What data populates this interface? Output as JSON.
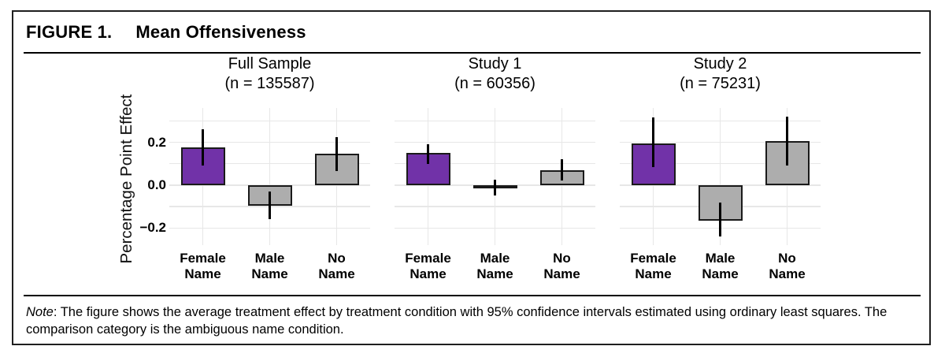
{
  "header": {
    "label": "FIGURE 1.",
    "title": "Mean Offensiveness"
  },
  "note": {
    "label": "Note",
    "text": ": The figure shows the average treatment effect by treatment condition with 95% confidence intervals estimated using ordinary least squares. The comparison category is the ambiguous name condition."
  },
  "colors": {
    "female_bar": "#7132A8",
    "other_bar": "#ADADAD",
    "bar_border": "#1A1A1A",
    "error_bar": "#000000",
    "gridline": "#E7E7E7"
  },
  "chart_data": {
    "type": "bar",
    "title": "Mean Offensiveness",
    "ylabel": "Percentage Point Effect",
    "xlabel": "",
    "ylim": [
      -0.28,
      0.36
    ],
    "grid": "on",
    "legend": "none",
    "error_bars": "95% confidence intervals",
    "gridlines": [
      0.3,
      0.2,
      0.1,
      0.0,
      -0.1,
      -0.2
    ],
    "y_ticks": [
      {
        "value": 0.2,
        "label": "0.2"
      },
      {
        "value": 0.0,
        "label": "0.0"
      },
      {
        "value": -0.2,
        "label": "−0.2"
      }
    ],
    "categories": [
      "Female Name",
      "Male Name",
      "No Name"
    ],
    "category_label_lines": [
      [
        "Female",
        "Name"
      ],
      [
        "Male",
        "Name"
      ],
      [
        "No",
        "Name"
      ]
    ],
    "panels": [
      {
        "title": "Full Sample",
        "subtitle": "(n = 135587)",
        "bars": [
          {
            "category": "Female Name",
            "value": 0.175,
            "ci_low": 0.09,
            "ci_high": 0.26,
            "color": "female"
          },
          {
            "category": "Male Name",
            "value": -0.095,
            "ci_low": -0.16,
            "ci_high": -0.03,
            "color": "gray"
          },
          {
            "category": "No Name",
            "value": 0.145,
            "ci_low": 0.065,
            "ci_high": 0.225,
            "color": "gray"
          }
        ]
      },
      {
        "title": "Study 1",
        "subtitle": "(n = 60356)",
        "bars": [
          {
            "category": "Female Name",
            "value": 0.15,
            "ci_low": 0.1,
            "ci_high": 0.19,
            "color": "female"
          },
          {
            "category": "Male Name",
            "value": -0.015,
            "ci_low": -0.05,
            "ci_high": 0.025,
            "color": "gray"
          },
          {
            "category": "No Name",
            "value": 0.07,
            "ci_low": 0.02,
            "ci_high": 0.12,
            "color": "gray"
          }
        ]
      },
      {
        "title": "Study 2",
        "subtitle": "(n = 75231)",
        "bars": [
          {
            "category": "Female Name",
            "value": 0.195,
            "ci_low": 0.085,
            "ci_high": 0.315,
            "color": "female"
          },
          {
            "category": "Male Name",
            "value": -0.165,
            "ci_low": -0.24,
            "ci_high": -0.08,
            "color": "gray"
          },
          {
            "category": "No Name",
            "value": 0.205,
            "ci_low": 0.09,
            "ci_high": 0.32,
            "color": "gray"
          }
        ]
      }
    ]
  }
}
